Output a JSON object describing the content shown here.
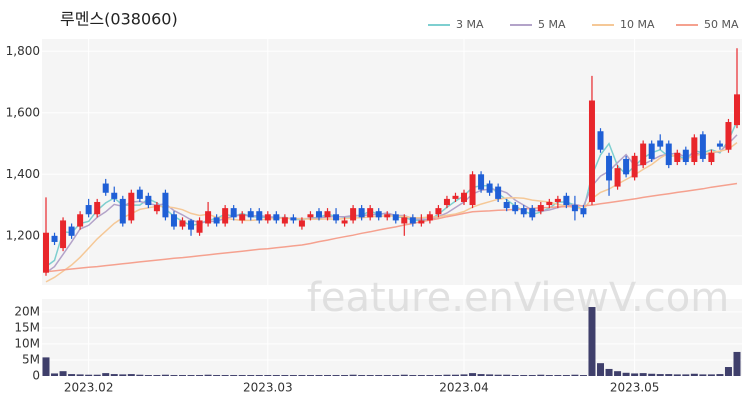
{
  "chart_data": {
    "type": "candlestick",
    "title": "루멘스(038060)",
    "watermark": "feature.enViewV.com",
    "categories": [
      null,
      null,
      null,
      null,
      null,
      "2023.02",
      null,
      null,
      null,
      null,
      null,
      null,
      null,
      null,
      null,
      null,
      null,
      null,
      null,
      null,
      null,
      null,
      null,
      null,
      null,
      null,
      "2023.03",
      null,
      null,
      null,
      null,
      null,
      null,
      null,
      null,
      null,
      null,
      null,
      null,
      null,
      null,
      null,
      null,
      null,
      null,
      null,
      null,
      null,
      null,
      "2023.04",
      null,
      null,
      null,
      null,
      null,
      null,
      null,
      null,
      null,
      null,
      null,
      null,
      null,
      null,
      null,
      null,
      null,
      null,
      null,
      "2023.05",
      null,
      null,
      null,
      null,
      null,
      null,
      null,
      null,
      null,
      null,
      null,
      null
    ],
    "open": [
      1080,
      1200,
      1160,
      1230,
      1230,
      1300,
      1270,
      1370,
      1340,
      1320,
      1250,
      1350,
      1330,
      1280,
      1340,
      1270,
      1230,
      1250,
      1210,
      1240,
      1260,
      1240,
      1290,
      1250,
      1280,
      1280,
      1250,
      1270,
      1240,
      1260,
      1230,
      1260,
      1280,
      1260,
      1270,
      1240,
      1250,
      1290,
      1260,
      1280,
      1260,
      1270,
      1240,
      1260,
      1240,
      1250,
      1270,
      1300,
      1320,
      1310,
      1300,
      1400,
      1370,
      1360,
      1310,
      1300,
      1290,
      1290,
      1280,
      1300,
      1310,
      1330,
      1300,
      1290,
      1310,
      1540,
      1460,
      1360,
      1450,
      1390,
      1430,
      1500,
      1510,
      1500,
      1440,
      1480,
      1440,
      1530,
      1440,
      1500,
      1480,
      1560
    ],
    "high": [
      1325,
      1210,
      1260,
      1240,
      1280,
      1320,
      1320,
      1385,
      1360,
      1330,
      1350,
      1360,
      1340,
      1310,
      1350,
      1280,
      1260,
      1255,
      1260,
      1310,
      1270,
      1300,
      1300,
      1280,
      1290,
      1290,
      1280,
      1280,
      1270,
      1270,
      1260,
      1280,
      1290,
      1290,
      1290,
      1260,
      1300,
      1300,
      1300,
      1290,
      1280,
      1280,
      1270,
      1270,
      1270,
      1280,
      1300,
      1330,
      1340,
      1350,
      1410,
      1410,
      1380,
      1370,
      1320,
      1310,
      1300,
      1300,
      1310,
      1320,
      1330,
      1340,
      1330,
      1300,
      1720,
      1550,
      1470,
      1430,
      1460,
      1470,
      1510,
      1510,
      1530,
      1510,
      1480,
      1490,
      1530,
      1540,
      1480,
      1510,
      1580,
      1810
    ],
    "low": [
      1070,
      1170,
      1150,
      1190,
      1220,
      1260,
      1260,
      1330,
      1310,
      1230,
      1240,
      1310,
      1290,
      1270,
      1250,
      1220,
      1220,
      1200,
      1200,
      1230,
      1230,
      1230,
      1250,
      1240,
      1250,
      1240,
      1240,
      1240,
      1230,
      1240,
      1220,
      1250,
      1250,
      1250,
      1240,
      1230,
      1240,
      1250,
      1250,
      1250,
      1250,
      1240,
      1200,
      1230,
      1230,
      1240,
      1260,
      1290,
      1310,
      1300,
      1290,
      1340,
      1330,
      1310,
      1280,
      1270,
      1260,
      1250,
      1270,
      1290,
      1290,
      1290,
      1250,
      1260,
      1300,
      1470,
      1330,
      1350,
      1390,
      1380,
      1420,
      1440,
      1480,
      1420,
      1430,
      1430,
      1430,
      1440,
      1430,
      1480,
      1470,
      1550
    ],
    "close": [
      1210,
      1180,
      1250,
      1200,
      1270,
      1270,
      1310,
      1340,
      1320,
      1240,
      1340,
      1320,
      1300,
      1300,
      1260,
      1230,
      1250,
      1220,
      1250,
      1280,
      1240,
      1290,
      1260,
      1270,
      1260,
      1250,
      1270,
      1250,
      1260,
      1250,
      1250,
      1270,
      1260,
      1280,
      1250,
      1250,
      1290,
      1260,
      1290,
      1260,
      1270,
      1250,
      1260,
      1240,
      1250,
      1270,
      1290,
      1320,
      1330,
      1340,
      1400,
      1350,
      1340,
      1320,
      1290,
      1280,
      1270,
      1260,
      1300,
      1310,
      1320,
      1300,
      1280,
      1270,
      1640,
      1480,
      1380,
      1420,
      1400,
      1460,
      1500,
      1450,
      1490,
      1430,
      1470,
      1440,
      1520,
      1450,
      1470,
      1490,
      1570,
      1660
    ],
    "up_color": "#e8262b",
    "down_color": "#1f5fd6",
    "series": [
      {
        "name": "3 MA",
        "color": "#7ecfd0",
        "values": [
          1100,
          1120,
          1213,
          1210,
          1240,
          1247,
          1283,
          1307,
          1323,
          1300,
          1300,
          1300,
          1320,
          1307,
          1287,
          1263,
          1247,
          1233,
          1240,
          1250,
          1257,
          1270,
          1263,
          1273,
          1263,
          1260,
          1260,
          1257,
          1260,
          1253,
          1253,
          1257,
          1260,
          1270,
          1263,
          1260,
          1263,
          1267,
          1280,
          1270,
          1273,
          1260,
          1260,
          1250,
          1250,
          1253,
          1270,
          1293,
          1313,
          1330,
          1357,
          1363,
          1363,
          1337,
          1317,
          1297,
          1280,
          1270,
          1277,
          1290,
          1310,
          1310,
          1300,
          1283,
          1397,
          1463,
          1500,
          1427,
          1400,
          1427,
          1453,
          1470,
          1480,
          1457,
          1463,
          1447,
          1477,
          1470,
          1480,
          1470,
          1510,
          1573
        ]
      },
      {
        "name": "5 MA",
        "color": "#b3a3c9",
        "values": [
          1080,
          1100,
          1140,
          1180,
          1222,
          1234,
          1260,
          1278,
          1302,
          1296,
          1310,
          1312,
          1304,
          1300,
          1304,
          1282,
          1268,
          1252,
          1242,
          1246,
          1248,
          1256,
          1264,
          1268,
          1264,
          1266,
          1262,
          1260,
          1258,
          1256,
          1256,
          1256,
          1258,
          1262,
          1262,
          1262,
          1266,
          1266,
          1268,
          1270,
          1274,
          1266,
          1266,
          1256,
          1254,
          1254,
          1262,
          1274,
          1292,
          1310,
          1336,
          1348,
          1352,
          1350,
          1340,
          1316,
          1300,
          1284,
          1280,
          1284,
          1292,
          1298,
          1302,
          1296,
          1362,
          1394,
          1410,
          1438,
          1464,
          1428,
          1432,
          1446,
          1460,
          1466,
          1468,
          1456,
          1470,
          1462,
          1470,
          1474,
          1500,
          1528
        ]
      },
      {
        "name": "10 MA",
        "color": "#f5c897",
        "values": [
          1050,
          1065,
          1085,
          1105,
          1130,
          1160,
          1190,
          1215,
          1240,
          1259,
          1272,
          1286,
          1291,
          1296,
          1295,
          1291,
          1285,
          1273,
          1266,
          1270,
          1260,
          1257,
          1253,
          1250,
          1250,
          1252,
          1254,
          1257,
          1258,
          1255,
          1256,
          1254,
          1254,
          1255,
          1254,
          1256,
          1258,
          1259,
          1262,
          1263,
          1265,
          1263,
          1263,
          1259,
          1259,
          1261,
          1261,
          1267,
          1271,
          1279,
          1293,
          1303,
          1311,
          1319,
          1323,
          1324,
          1322,
          1316,
          1313,
          1310,
          1302,
          1297,
          1291,
          1286,
          1321,
          1341,
          1352,
          1368,
          1383,
          1398,
          1416,
          1432,
          1453,
          1469,
          1452,
          1448,
          1462,
          1465,
          1472,
          1475,
          1482,
          1503
        ]
      },
      {
        "name": "50 MA",
        "color": "#f5a18f",
        "values": [
          1083,
          1086,
          1089,
          1092,
          1095,
          1098,
          1100,
          1103,
          1106,
          1109,
          1112,
          1115,
          1118,
          1121,
          1124,
          1127,
          1129,
          1132,
          1135,
          1138,
          1141,
          1144,
          1147,
          1150,
          1153,
          1156,
          1158,
          1161,
          1164,
          1167,
          1170,
          1175,
          1181,
          1186,
          1192,
          1197,
          1202,
          1208,
          1213,
          1219,
          1224,
          1229,
          1235,
          1240,
          1246,
          1251,
          1256,
          1262,
          1267,
          1273,
          1278,
          1280,
          1281,
          1283,
          1284,
          1286,
          1287,
          1289,
          1291,
          1292,
          1294,
          1295,
          1297,
          1298,
          1300,
          1304,
          1308,
          1312,
          1316,
          1320,
          1325,
          1329,
          1333,
          1337,
          1341,
          1345,
          1349,
          1353,
          1358,
          1362,
          1366,
          1370
        ]
      }
    ],
    "ylim": [
      1040,
      1840
    ],
    "yticks": [
      {
        "value": 1200,
        "label": "1,200"
      },
      {
        "value": 1400,
        "label": "1,400"
      },
      {
        "value": 1600,
        "label": "1,600"
      },
      {
        "value": 1800,
        "label": "1,800"
      }
    ],
    "volume": {
      "color": "#3f3f6b",
      "values": [
        5800000,
        800000,
        1500000,
        600000,
        500000,
        400000,
        400000,
        900000,
        600000,
        500000,
        600000,
        400000,
        300000,
        300000,
        400000,
        300000,
        300000,
        300000,
        300000,
        400000,
        300000,
        300000,
        300000,
        300000,
        300000,
        300000,
        300000,
        300000,
        300000,
        300000,
        300000,
        300000,
        300000,
        300000,
        300000,
        300000,
        400000,
        300000,
        300000,
        300000,
        300000,
        300000,
        400000,
        300000,
        300000,
        300000,
        300000,
        400000,
        400000,
        500000,
        900000,
        600000,
        500000,
        400000,
        400000,
        300000,
        300000,
        300000,
        400000,
        300000,
        300000,
        300000,
        400000,
        300000,
        21500000,
        4000000,
        2200000,
        1500000,
        1000000,
        800000,
        900000,
        700000,
        600000,
        600000,
        500000,
        500000,
        700000,
        500000,
        500000,
        600000,
        2800000,
        7500000
      ],
      "ylim": [
        0,
        24000000
      ],
      "yticks": [
        0,
        {
          "value": 5000000,
          "label": "5M"
        },
        {
          "value": 10000000,
          "label": "10M"
        },
        {
          "value": 15000000,
          "label": "15M"
        },
        {
          "value": 20000000,
          "label": "20M"
        }
      ]
    },
    "grid": true,
    "legend": "top-right"
  }
}
